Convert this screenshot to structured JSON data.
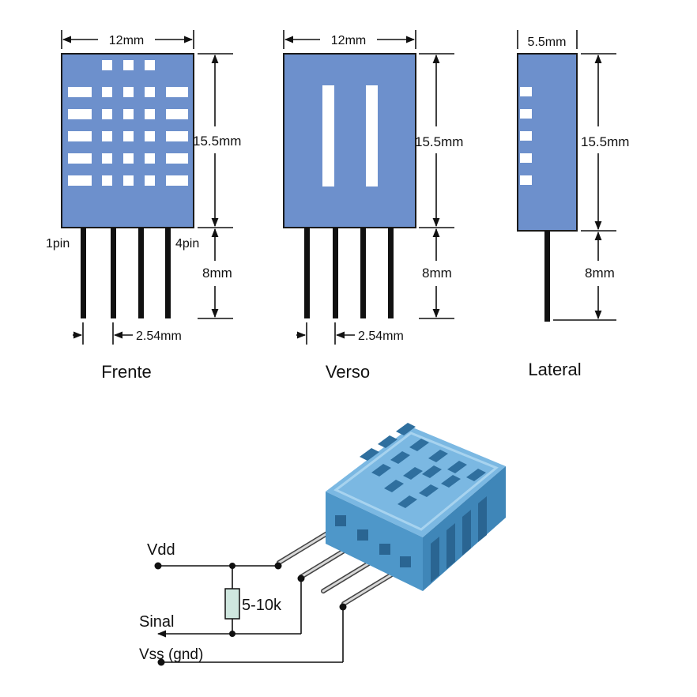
{
  "colors": {
    "body": "#6d90cc",
    "body_stroke": "#1a1a1a",
    "sensor_light": "#8cc6e8",
    "sensor_mid": "#5fa6d4",
    "sensor_dark": "#3f86b8",
    "pin": "#111111"
  },
  "views": {
    "front": {
      "width_label": "12mm",
      "height_label": "15.5mm",
      "pin_length_label": "8mm",
      "pin1_label": "1pin",
      "pin4_label": "4pin",
      "pitch_label": "2.54mm",
      "caption": "Frente"
    },
    "back": {
      "width_label": "12mm",
      "height_label": "15.5mm",
      "pin_length_label": "8mm",
      "pitch_label": "2.54mm",
      "caption": "Verso"
    },
    "side": {
      "width_label": "5.5mm",
      "height_label": "15.5mm",
      "pin_length_label": "8mm",
      "caption": "Lateral"
    }
  },
  "circuit": {
    "vdd_label": "Vdd",
    "signal_label": "Sinal",
    "vss_label": "Vss (gnd)",
    "resistor_label": "5-10k"
  }
}
